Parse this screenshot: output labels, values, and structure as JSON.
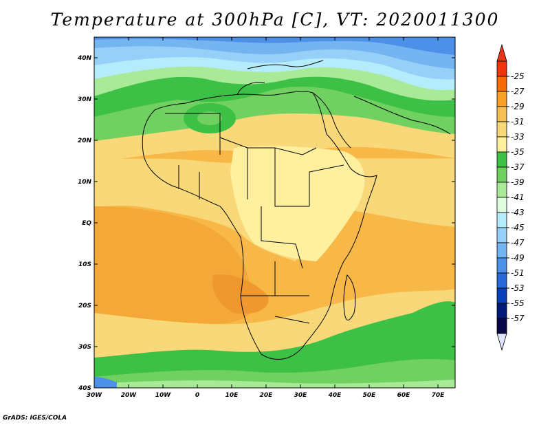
{
  "title": "Temperature at 300hPa [C], VT: 2020011300",
  "footer": "GrADS: IGES/COLA",
  "map": {
    "lon_range": [
      -30,
      75
    ],
    "lat_range": [
      -40,
      45
    ],
    "lon_ticks": [
      {
        "value": -30,
        "label": "30W"
      },
      {
        "value": -20,
        "label": "20W"
      },
      {
        "value": -10,
        "label": "10W"
      },
      {
        "value": 0,
        "label": "0"
      },
      {
        "value": 10,
        "label": "10E"
      },
      {
        "value": 20,
        "label": "20E"
      },
      {
        "value": 30,
        "label": "30E"
      },
      {
        "value": 40,
        "label": "40E"
      },
      {
        "value": 50,
        "label": "50E"
      },
      {
        "value": 60,
        "label": "60E"
      },
      {
        "value": 70,
        "label": "70E"
      }
    ],
    "lat_ticks": [
      {
        "value": 40,
        "label": "40N"
      },
      {
        "value": 30,
        "label": "30N"
      },
      {
        "value": 20,
        "label": "20N"
      },
      {
        "value": 10,
        "label": "10N"
      },
      {
        "value": 0,
        "label": "EQ"
      },
      {
        "value": -10,
        "label": "10S"
      },
      {
        "value": -20,
        "label": "20S"
      },
      {
        "value": -30,
        "label": "30S"
      },
      {
        "value": -40,
        "label": "40S"
      }
    ]
  },
  "colorbar": {
    "labels": [
      "-25",
      "-27",
      "-29",
      "-31",
      "-33",
      "-35",
      "-37",
      "-39",
      "-41",
      "-43",
      "-45",
      "-47",
      "-49",
      "-51",
      "-53",
      "-55",
      "-57"
    ],
    "colors": [
      "#f0340c",
      "#fa6a0a",
      "#f8a028",
      "#f4c052",
      "#f8d878",
      "#fff0a0",
      "#3cc046",
      "#70d060",
      "#a8ea98",
      "#e0fce0",
      "#b4ecfc",
      "#96d0f8",
      "#74b4f0",
      "#4c90e8",
      "#2868d8",
      "#0a40b8",
      "#001a78",
      "#080848"
    ],
    "top_arrow_color": "#e8361a",
    "bottom_arrow_color": "#e0e4ff"
  }
}
